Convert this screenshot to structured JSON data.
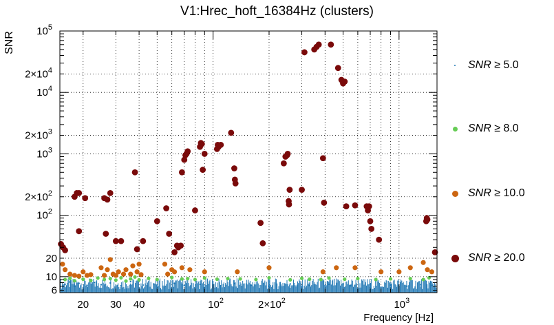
{
  "chart_data": {
    "type": "scatter",
    "title": "V1:Hrec_hoft_16384Hz (clusters)",
    "xlabel": "Frequency [Hz]",
    "ylabel": "SNR",
    "x_scale": "log",
    "y_scale": "log",
    "xlim": [
      15,
      1600
    ],
    "ylim": [
      5.5,
      100000
    ],
    "grid": true,
    "legend_position": "right",
    "x_ticks": [
      {
        "value": 20,
        "label": "20"
      },
      {
        "value": 30,
        "label": "30"
      },
      {
        "value": 40,
        "label": "40"
      },
      {
        "value": 100,
        "label": "10",
        "exp": "2"
      },
      {
        "value": 200,
        "label": "2×10",
        "exp": "2"
      },
      {
        "value": 1000,
        "label": "10",
        "exp": "3"
      }
    ],
    "y_ticks": [
      {
        "value": 6,
        "label": "6"
      },
      {
        "value": 10,
        "label": "10"
      },
      {
        "value": 20,
        "label": "20"
      },
      {
        "value": 100,
        "label": "10",
        "exp": "2"
      },
      {
        "value": 200,
        "label": "2×10",
        "exp": "2"
      },
      {
        "value": 1000,
        "label": "10",
        "exp": "3"
      },
      {
        "value": 2000,
        "label": "2×10",
        "exp": "3"
      },
      {
        "value": 10000,
        "label": "10",
        "exp": "4"
      },
      {
        "value": 20000,
        "label": "2×10",
        "exp": "4"
      },
      {
        "value": 100000,
        "label": "10",
        "exp": "5"
      }
    ],
    "series": [
      {
        "name": "SNR ≥ 5.0",
        "color": "#1f77b4",
        "style": "dense-background",
        "points": [
          [
            16,
            7.5
          ],
          [
            17,
            8.2
          ],
          [
            18,
            7.0
          ],
          [
            19,
            7.8
          ],
          [
            21,
            7.2
          ],
          [
            23,
            8.0
          ],
          [
            25,
            7.4
          ],
          [
            28,
            7.9
          ],
          [
            32,
            7.1
          ],
          [
            36,
            8.3
          ],
          [
            42,
            7.3
          ],
          [
            48,
            7.6
          ],
          [
            55,
            7.0
          ],
          [
            62,
            7.8
          ],
          [
            70,
            7.2
          ],
          [
            85,
            7.5
          ],
          [
            110,
            7.1
          ],
          [
            130,
            7.7
          ],
          [
            160,
            7.3
          ],
          [
            200,
            7.0
          ],
          [
            260,
            7.6
          ],
          [
            330,
            7.2
          ],
          [
            420,
            7.5
          ],
          [
            550,
            7.1
          ],
          [
            700,
            7.7
          ],
          [
            900,
            7.3
          ],
          [
            1100,
            7.0
          ],
          [
            1300,
            7.4
          ],
          [
            1500,
            7.2
          ]
        ]
      },
      {
        "name": "SNR ≥ 8.0",
        "color": "#66cc55",
        "points": [
          [
            16,
            9.0
          ],
          [
            17,
            9.4
          ],
          [
            18,
            8.6
          ],
          [
            19,
            9.8
          ],
          [
            20,
            9.1
          ],
          [
            22,
            8.7
          ],
          [
            24,
            9.5
          ],
          [
            26,
            9.0
          ],
          [
            28,
            9.3
          ],
          [
            30,
            8.8
          ],
          [
            32,
            9.6
          ],
          [
            34,
            8.5
          ],
          [
            36,
            9.2
          ],
          [
            38,
            9.9
          ],
          [
            40,
            8.9
          ],
          [
            45,
            9.4
          ],
          [
            50,
            9.0
          ],
          [
            60,
            9.7
          ],
          [
            68,
            9.2
          ],
          [
            73,
            9.3
          ],
          [
            80,
            9.0
          ],
          [
            90,
            9.5
          ],
          [
            105,
            9.1
          ],
          [
            120,
            9.3
          ],
          [
            140,
            9.2
          ],
          [
            170,
            9.0
          ],
          [
            200,
            9.6
          ],
          [
            260,
            8.9
          ],
          [
            300,
            9.4
          ],
          [
            330,
            9.1
          ],
          [
            380,
            9.0
          ],
          [
            420,
            9.5
          ],
          [
            510,
            9.1
          ],
          [
            600,
            9.3
          ],
          [
            750,
            9.0
          ],
          [
            900,
            9.2
          ],
          [
            1150,
            9.3
          ],
          [
            1350,
            9.0
          ],
          [
            1450,
            9.6
          ]
        ]
      },
      {
        "name": "SNR ≥ 10.0",
        "color": "#cc6611",
        "points": [
          [
            15.5,
            16
          ],
          [
            16,
            13
          ],
          [
            17,
            11
          ],
          [
            18,
            10.5
          ],
          [
            19,
            10.2
          ],
          [
            20,
            12
          ],
          [
            21,
            10.5
          ],
          [
            22,
            10.8
          ],
          [
            25,
            14
          ],
          [
            26,
            10.5
          ],
          [
            27,
            13
          ],
          [
            28,
            19
          ],
          [
            29,
            11
          ],
          [
            30,
            10.5
          ],
          [
            31,
            12
          ],
          [
            33,
            11
          ],
          [
            34,
            13
          ],
          [
            36,
            11
          ],
          [
            37,
            15
          ],
          [
            39,
            12
          ],
          [
            40,
            16
          ],
          [
            41,
            10.8
          ],
          [
            55,
            16
          ],
          [
            57,
            11
          ],
          [
            60,
            13
          ],
          [
            62,
            12
          ],
          [
            68,
            14
          ],
          [
            75,
            13
          ],
          [
            90,
            12
          ],
          [
            135,
            12
          ],
          [
            200,
            14
          ],
          [
            390,
            12
          ],
          [
            460,
            14
          ],
          [
            580,
            14
          ],
          [
            800,
            12
          ],
          [
            1000,
            12
          ],
          [
            1150,
            14
          ],
          [
            1350,
            17
          ],
          [
            1420,
            13
          ],
          [
            1500,
            12
          ]
        ]
      },
      {
        "name": "SNR ≥ 20.0",
        "color": "#7a0a0a",
        "points": [
          [
            15.2,
            34
          ],
          [
            15.6,
            30
          ],
          [
            16,
            27
          ],
          [
            18,
            200
          ],
          [
            18.5,
            230
          ],
          [
            19,
            230
          ],
          [
            19,
            55
          ],
          [
            20.5,
            190
          ],
          [
            26,
            190
          ],
          [
            26.5,
            50
          ],
          [
            27,
            180
          ],
          [
            28,
            230
          ],
          [
            30,
            38
          ],
          [
            32,
            38
          ],
          [
            38,
            500
          ],
          [
            39,
            28
          ],
          [
            42,
            38
          ],
          [
            50,
            80
          ],
          [
            56,
            130
          ],
          [
            58,
            50
          ],
          [
            62,
            25
          ],
          [
            64,
            32
          ],
          [
            65,
            30
          ],
          [
            67,
            32
          ],
          [
            68,
            500
          ],
          [
            70,
            800
          ],
          [
            71,
            950
          ],
          [
            72,
            1000
          ],
          [
            73,
            1100
          ],
          [
            80,
            120
          ],
          [
            85,
            1300
          ],
          [
            86,
            1500
          ],
          [
            87,
            1450
          ],
          [
            88,
            550
          ],
          [
            90,
            1000
          ],
          [
            105,
            1200
          ],
          [
            106,
            1400
          ],
          [
            107,
            1300
          ],
          [
            110,
            1400
          ],
          [
            125,
            2200
          ],
          [
            130,
            580
          ],
          [
            131,
            380
          ],
          [
            132,
            330
          ],
          [
            180,
            75
          ],
          [
            185,
            35
          ],
          [
            240,
            700
          ],
          [
            245,
            900
          ],
          [
            250,
            950
          ],
          [
            252,
            1000
          ],
          [
            255,
            170
          ],
          [
            256,
            150
          ],
          [
            258,
            260
          ],
          [
            300,
            260
          ],
          [
            310,
            45000
          ],
          [
            350,
            50000
          ],
          [
            360,
            55000
          ],
          [
            370,
            60000
          ],
          [
            390,
            850
          ],
          [
            395,
            160
          ],
          [
            430,
            60000
          ],
          [
            470,
            25000
          ],
          [
            490,
            16000
          ],
          [
            500,
            14000
          ],
          [
            510,
            15000
          ],
          [
            520,
            140
          ],
          [
            580,
            145
          ],
          [
            670,
            140
          ],
          [
            680,
            120
          ],
          [
            690,
            140
          ],
          [
            700,
            80
          ],
          [
            710,
            60
          ],
          [
            780,
            40
          ],
          [
            1400,
            80
          ],
          [
            1410,
            90
          ],
          [
            1420,
            85
          ],
          [
            1560,
            25
          ]
        ]
      }
    ]
  }
}
